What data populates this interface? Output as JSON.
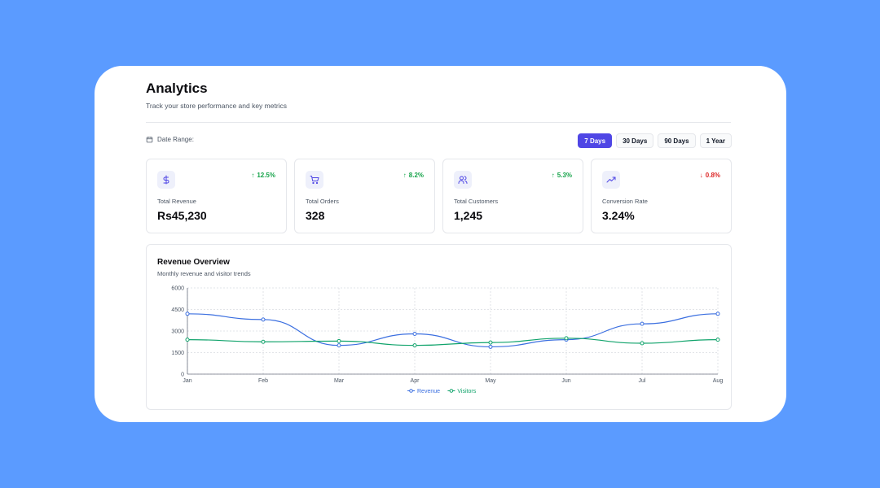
{
  "header": {
    "title": "Analytics",
    "subtitle": "Track your store performance and key metrics"
  },
  "date_range": {
    "label": "Date Range:",
    "icon": "calendar-icon"
  },
  "range_buttons": [
    {
      "label": "7 Days",
      "active": true
    },
    {
      "label": "30 Days",
      "active": false
    },
    {
      "label": "90 Days",
      "active": false
    },
    {
      "label": "1 Year",
      "active": false
    }
  ],
  "stats": [
    {
      "icon": "dollar-icon",
      "label": "Total Revenue",
      "value": "Rs45,230",
      "change": "12.5%",
      "direction": "up"
    },
    {
      "icon": "cart-icon",
      "label": "Total Orders",
      "value": "328",
      "change": "8.2%",
      "direction": "up"
    },
    {
      "icon": "users-icon",
      "label": "Total Customers",
      "value": "1,245",
      "change": "5.3%",
      "direction": "up"
    },
    {
      "icon": "trending-up-icon",
      "label": "Conversion Rate",
      "value": "3.24%",
      "change": "0.8%",
      "direction": "down"
    }
  ],
  "colors": {
    "accent": "#4f46e5",
    "up": "#16a34a",
    "down": "#dc2626",
    "revenue": "#3b6fe0",
    "visitors": "#10a36b"
  },
  "chart": {
    "title": "Revenue Overview",
    "subtitle": "Monthly revenue and visitor trends"
  },
  "chart_data": {
    "type": "line",
    "x": [
      "Jan",
      "Feb",
      "Mar",
      "Apr",
      "May",
      "Jun",
      "Jul",
      "Aug"
    ],
    "yticks": [
      0,
      1500,
      3000,
      4500,
      6000
    ],
    "ylim": [
      0,
      6000
    ],
    "grid": true,
    "legend_position": "bottom",
    "series": [
      {
        "name": "Revenue",
        "values": [
          4200,
          3800,
          2000,
          2800,
          1900,
          2400,
          3500,
          4200
        ]
      },
      {
        "name": "Visitors",
        "values": [
          2400,
          2250,
          2300,
          2000,
          2200,
          2500,
          2150,
          2400
        ]
      }
    ]
  }
}
